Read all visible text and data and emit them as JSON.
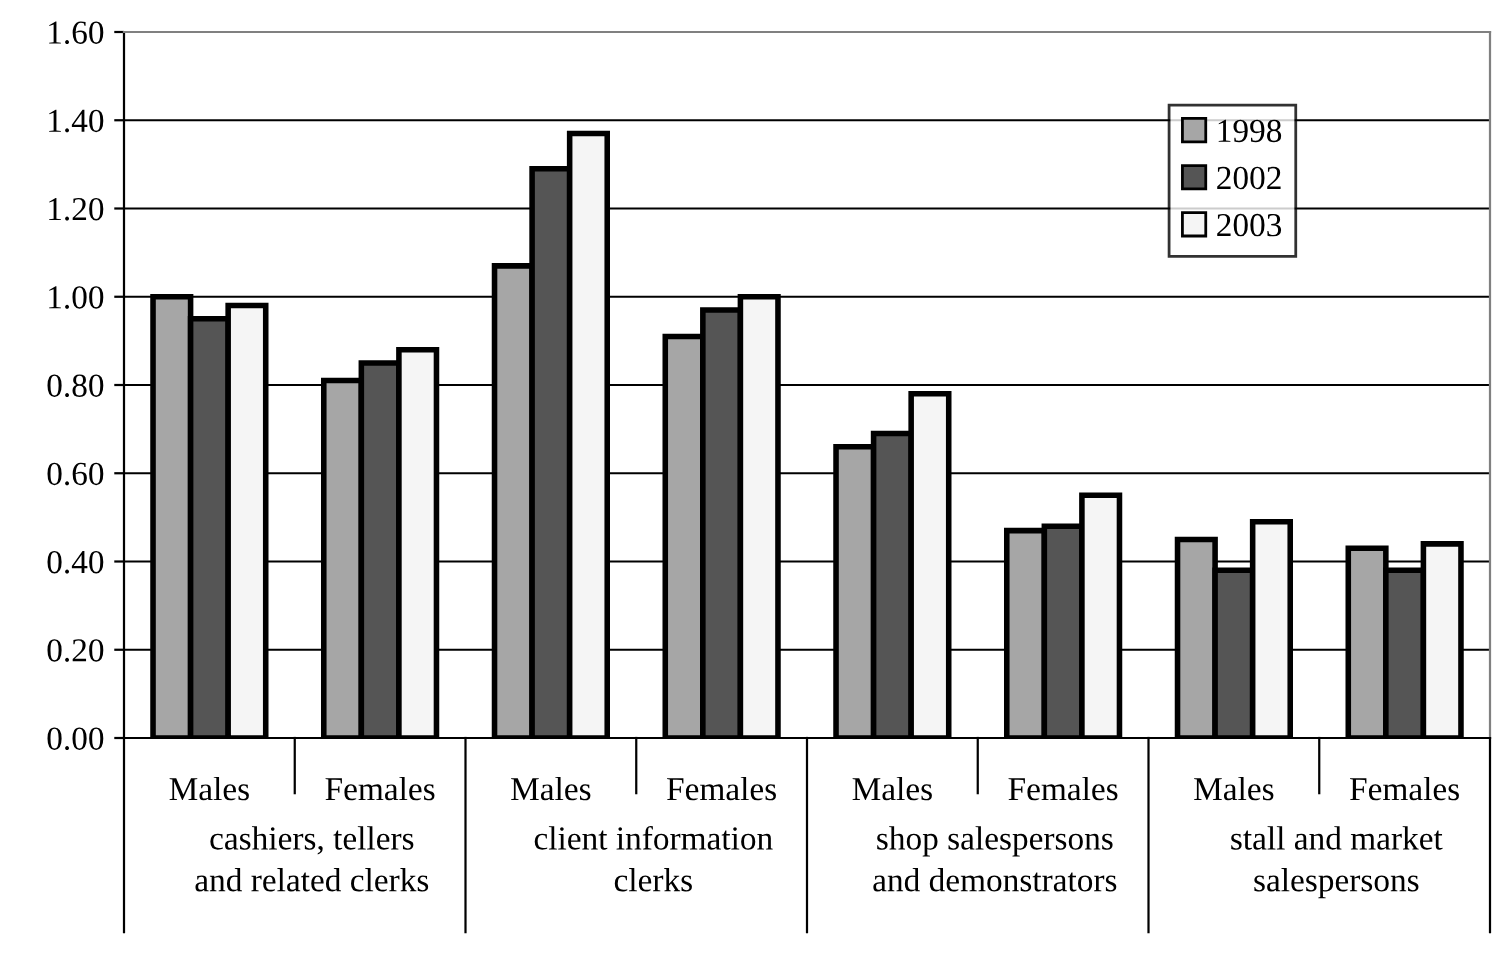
{
  "chart_data": {
    "type": "bar",
    "categories": [
      "Males",
      "Females",
      "Males",
      "Females",
      "Males",
      "Females",
      "Males",
      "Females"
    ],
    "series": [
      {
        "name": "1998",
        "color": "#a6a6a6",
        "values": [
          1.0,
          0.81,
          1.07,
          0.91,
          0.66,
          0.47,
          0.45,
          0.43
        ]
      },
      {
        "name": "2002",
        "color": "#555555",
        "values": [
          0.95,
          0.85,
          1.29,
          0.97,
          0.69,
          0.48,
          0.38,
          0.38
        ]
      },
      {
        "name": "2003",
        "color": "#f5f5f5",
        "values": [
          0.98,
          0.88,
          1.37,
          1.0,
          0.78,
          0.55,
          0.49,
          0.44
        ]
      }
    ],
    "annotations": [
      "cashiers, tellers\nand related clerks",
      "client information\nclerks",
      "shop salespersons\nand demonstrators",
      "stall and market\nsalespersons"
    ],
    "ylim": [
      0,
      1.6
    ],
    "yticks": [
      {
        "value": 0,
        "label": "0.00"
      },
      {
        "value": 0.2,
        "label": "0.20"
      },
      {
        "value": 0.4,
        "label": "0.40"
      },
      {
        "value": 0.6,
        "label": "0.60"
      },
      {
        "value": 0.8,
        "label": "0.80"
      },
      {
        "value": 1.0,
        "label": "1.00"
      },
      {
        "value": 1.2,
        "label": "1.20"
      },
      {
        "value": 1.4,
        "label": "1.40"
      },
      {
        "value": 1.6,
        "label": "1.60"
      }
    ],
    "grid": "y",
    "legend": "top right"
  }
}
